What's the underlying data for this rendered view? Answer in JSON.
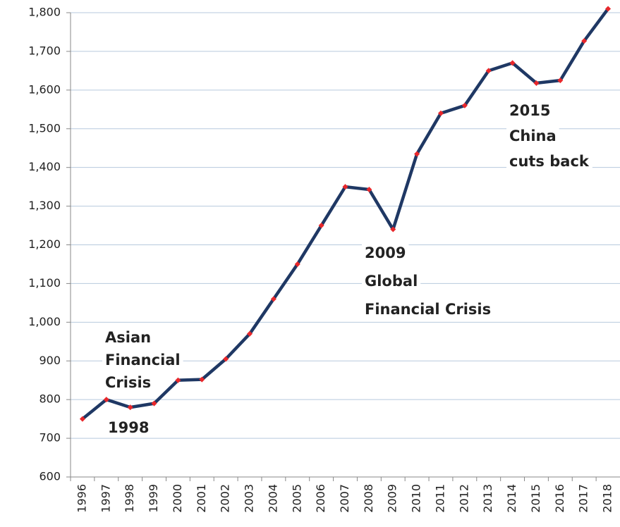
{
  "chart_data": {
    "type": "line",
    "categories": [
      "1996",
      "1997",
      "1998",
      "1999",
      "2000",
      "2001",
      "2002",
      "2003",
      "2004",
      "2005",
      "2006",
      "2007",
      "2008",
      "2009",
      "2010",
      "2011",
      "2012",
      "2013",
      "2014",
      "2015",
      "2016",
      "2017",
      "2018"
    ],
    "series": [
      {
        "color": "#1f3864",
        "marker_color": "#e8272b",
        "values": [
          750,
          800,
          780,
          790,
          850,
          852,
          905,
          970,
          1060,
          1150,
          1250,
          1350,
          1343,
          1240,
          1435,
          1540,
          1560,
          1650,
          1670,
          1618,
          1625,
          1727,
          1810
        ]
      }
    ],
    "ylim": [
      600,
      1800
    ],
    "yticks": [
      600,
      700,
      800,
      900,
      {
        "value": 1000,
        "label": "1,000"
      },
      {
        "value": 1100,
        "label": "1,100"
      },
      {
        "value": 1200,
        "label": "1,200"
      },
      {
        "value": 1300,
        "label": "1,300"
      },
      {
        "value": 1400,
        "label": "1,400"
      },
      {
        "value": 1500,
        "label": "1,500"
      },
      {
        "value": 1600,
        "label": "1,600"
      },
      {
        "value": 1700,
        "label": "1,700"
      },
      {
        "value": 1800,
        "label": "1,800"
      }
    ],
    "grid": true,
    "annotations": [
      {
        "lines": [
          "Asian",
          "Financial",
          "Crisis"
        ]
      },
      {
        "lines": [
          "1998"
        ]
      },
      {
        "lines": [
          "2009",
          "Global",
          "Financial Crisis"
        ]
      },
      {
        "lines": [
          "2015",
          "China",
          "cuts back"
        ]
      }
    ],
    "annotation_color": "#e8272b"
  }
}
